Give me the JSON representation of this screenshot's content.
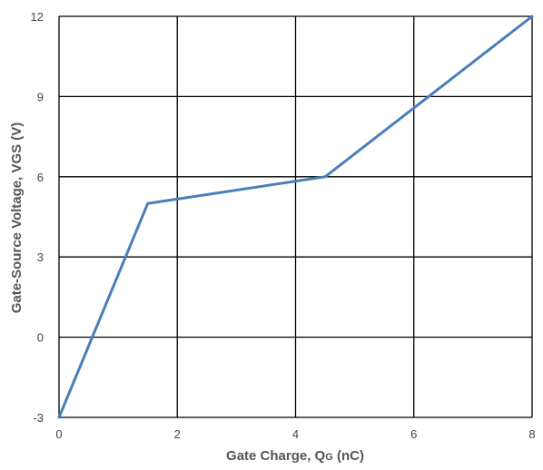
{
  "chart_data": {
    "type": "line",
    "title": "",
    "xlabel": {
      "main": "Gate Charge, Q",
      "subscript": "G",
      "suffix": " (nC)"
    },
    "ylabel": "Gate-Source Voltage, VGS (V)",
    "xlim": [
      0,
      8
    ],
    "ylim": [
      -3,
      12
    ],
    "xticks": [
      "0",
      "2",
      "4",
      "6",
      "8"
    ],
    "yticks": [
      "-3",
      "0",
      "3",
      "6",
      "9",
      "12"
    ],
    "grid": true,
    "legend": "none",
    "series": [
      {
        "color": "#4a7ebb",
        "x": [
          0,
          1.5,
          4.5,
          8
        ],
        "y": [
          -3,
          5,
          6,
          12
        ]
      }
    ]
  }
}
